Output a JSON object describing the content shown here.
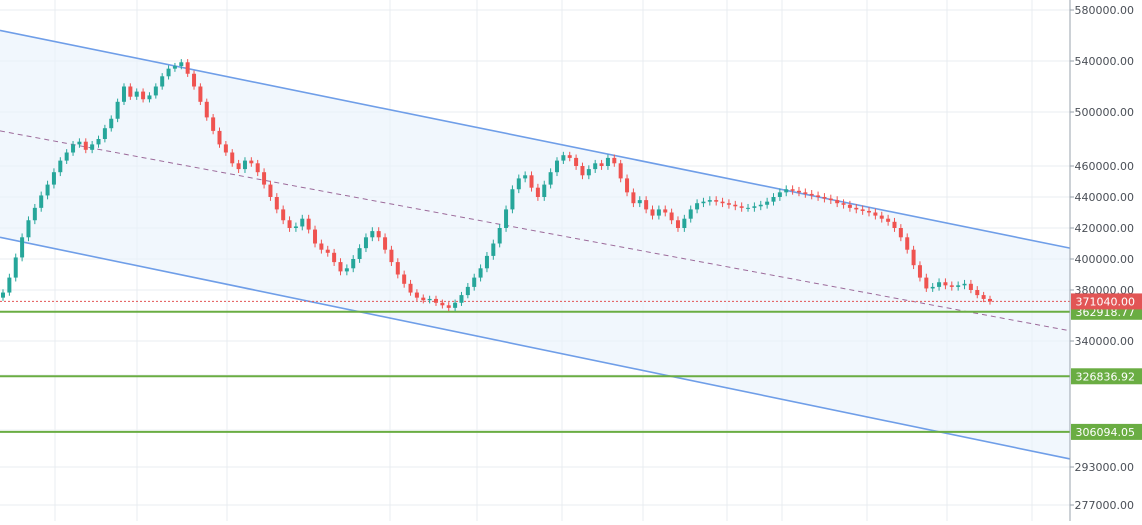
{
  "chart_data": {
    "type": "candlestick",
    "y_axis_ticks": [
      "580000.00",
      "540000.00",
      "500000.00",
      "460000.00",
      "440000.00",
      "420000.00",
      "400000.00",
      "380000.00",
      "340000.00",
      "293000.00",
      "277000.00"
    ],
    "y_axis_tick_values": [
      580000,
      540000,
      500000,
      460000,
      440000,
      420000,
      400000,
      380000,
      340000,
      293000,
      277000
    ],
    "y_axis_position": "right",
    "grid": true,
    "current_price": {
      "label": "371040.00",
      "value": 371040
    },
    "horizontal_levels": [
      {
        "label": "362918.77",
        "value": 362918.77
      },
      {
        "label": "326836.92",
        "value": 326836.92
      },
      {
        "label": "306094.05",
        "value": 306094.05
      }
    ],
    "channel": {
      "upper_start": 564000,
      "upper_end": 407000,
      "lower_start": 414000,
      "lower_end": 296000,
      "middle_start": 486000,
      "middle_end": 348000
    },
    "closes": [
      378000,
      388000,
      401000,
      414000,
      425000,
      433000,
      441000,
      448000,
      456000,
      464000,
      470000,
      476000,
      478000,
      472000,
      476000,
      480000,
      488000,
      495000,
      508000,
      520000,
      512000,
      516000,
      510000,
      513000,
      520000,
      528000,
      534000,
      536000,
      539000,
      530000,
      520000,
      508000,
      496000,
      486000,
      476000,
      470000,
      462000,
      458000,
      464000,
      462000,
      456000,
      448000,
      440000,
      432000,
      425000,
      420000,
      421000,
      426000,
      419000,
      410000,
      406000,
      404000,
      398000,
      392000,
      394000,
      400000,
      407000,
      414000,
      418000,
      414000,
      406000,
      398000,
      390000,
      384000,
      378000,
      374000,
      372000,
      373000,
      370000,
      368000,
      366000,
      370000,
      376000,
      382000,
      388000,
      394000,
      402000,
      410000,
      420000,
      432000,
      445000,
      452000,
      454000,
      446000,
      440000,
      448000,
      456000,
      464000,
      468000,
      466000,
      460000,
      454000,
      458000,
      462000,
      460000,
      466000,
      462000,
      452000,
      443000,
      436000,
      438000,
      432000,
      428000,
      432000,
      430000,
      425000,
      420000,
      426000,
      432000,
      436000,
      437000,
      438000,
      437000,
      436000,
      435000,
      434000,
      433000,
      433000,
      434000,
      435000,
      437000,
      440000,
      443000,
      445000,
      444000,
      443000,
      442000,
      441000,
      440000,
      439000,
      438000,
      436000,
      435000,
      433000,
      432000,
      431000,
      430000,
      428000,
      426000,
      424000,
      420000,
      414000,
      406000,
      396000,
      388000,
      381000,
      382000,
      385000,
      383000,
      382000,
      383000,
      384000,
      380000,
      376000,
      373000,
      371040
    ],
    "x_start_index": 0
  }
}
